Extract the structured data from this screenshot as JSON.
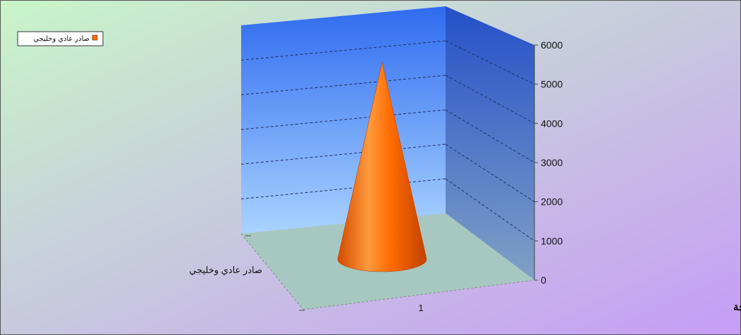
{
  "chart_data": {
    "type": "bar",
    "bar_shape": "cone",
    "three_d": true,
    "title": "ميناء الدوحة",
    "categories": [
      "1"
    ],
    "series": [
      {
        "name": "صادر عادي وخليجي",
        "values": [
          5800
        ]
      }
    ],
    "series_axis_label": "صادر عادي وخليجي",
    "ylim": [
      0,
      6000
    ],
    "yticks": [
      0,
      1000,
      2000,
      3000,
      4000,
      5000,
      6000
    ],
    "grid": true,
    "legend": "top-left",
    "colors": {
      "series": "#ff6a00",
      "wall": "#3f7df0",
      "floor": "#a6c8c0",
      "background_from": "#c8f5c8",
      "background_to": "#c79cf6"
    }
  }
}
